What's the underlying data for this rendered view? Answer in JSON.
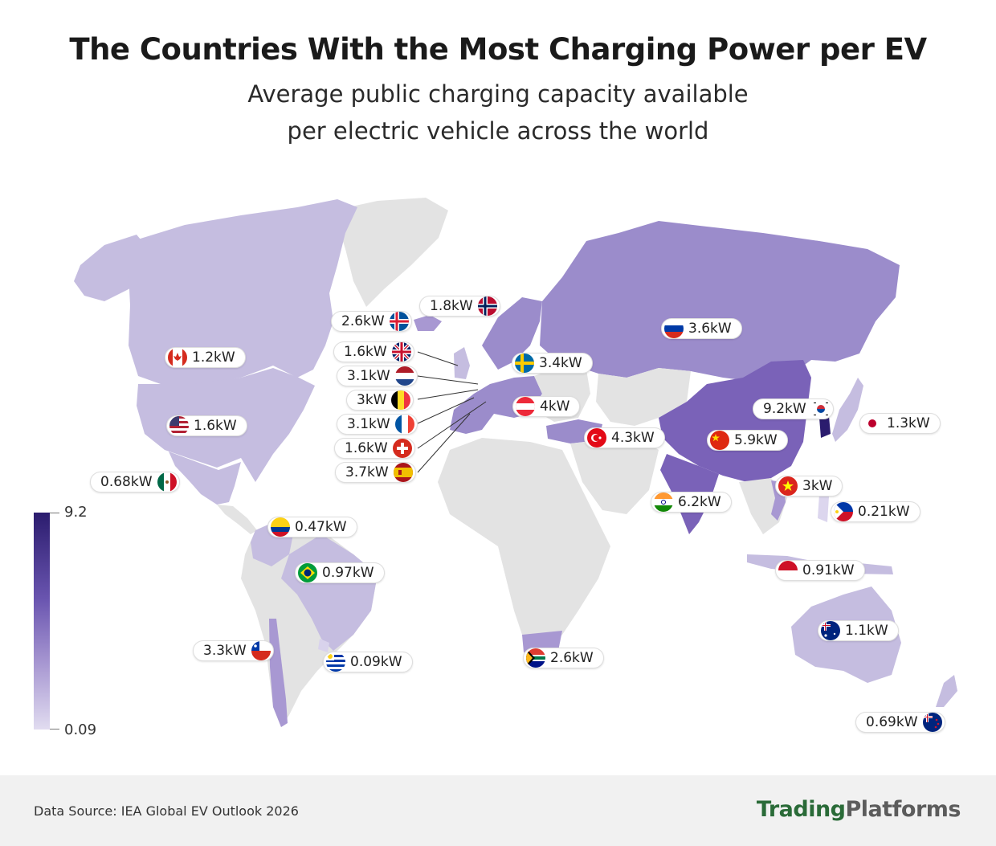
{
  "header": {
    "title": "The Countries With the Most Charging Power per EV",
    "subtitle_line1": "Average public charging capacity available",
    "subtitle_line2": "per electric vehicle across the world"
  },
  "legend": {
    "max": "9.2",
    "min": "0.09",
    "color_high": "#2b1c6e",
    "color_low": "#e1dcf0"
  },
  "colors": {
    "no_data": "#e3e3e3",
    "low": "#c5bde0",
    "mid": "#9b8ccb",
    "high": "#7a62b8",
    "top": "#4b3592"
  },
  "countries": [
    {
      "name": "Canada",
      "value": "1.2kW",
      "flag": "canada-flag"
    },
    {
      "name": "United States",
      "value": "1.6kW",
      "flag": "us-flag"
    },
    {
      "name": "Mexico",
      "value": "0.68kW",
      "flag": "mexico-flag"
    },
    {
      "name": "Colombia",
      "value": "0.47kW",
      "flag": "colombia-flag"
    },
    {
      "name": "Brazil",
      "value": "0.97kW",
      "flag": "brazil-flag"
    },
    {
      "name": "Chile",
      "value": "3.3kW",
      "flag": "chile-flag"
    },
    {
      "name": "Uruguay",
      "value": "0.09kW",
      "flag": "uruguay-flag"
    },
    {
      "name": "Iceland",
      "value": "2.6kW",
      "flag": "iceland-flag"
    },
    {
      "name": "Norway",
      "value": "1.8kW",
      "flag": "norway-flag"
    },
    {
      "name": "United Kingdom",
      "value": "1.6kW",
      "flag": "uk-flag"
    },
    {
      "name": "Netherlands",
      "value": "3.1kW",
      "flag": "netherlands-flag"
    },
    {
      "name": "Belgium",
      "value": "3kW",
      "flag": "belgium-flag"
    },
    {
      "name": "France",
      "value": "3.1kW",
      "flag": "france-flag"
    },
    {
      "name": "Switzerland",
      "value": "1.6kW",
      "flag": "switzerland-flag"
    },
    {
      "name": "Spain",
      "value": "3.7kW",
      "flag": "spain-flag"
    },
    {
      "name": "Sweden",
      "value": "3.4kW",
      "flag": "sweden-flag"
    },
    {
      "name": "Austria",
      "value": "4kW",
      "flag": "austria-flag"
    },
    {
      "name": "Russia",
      "value": "3.6kW",
      "flag": "russia-flag"
    },
    {
      "name": "Turkey",
      "value": "4.3kW",
      "flag": "turkey-flag"
    },
    {
      "name": "China",
      "value": "5.9kW",
      "flag": "china-flag"
    },
    {
      "name": "South Korea",
      "value": "9.2kW",
      "flag": "south-korea-flag"
    },
    {
      "name": "Japan",
      "value": "1.3kW",
      "flag": "japan-flag"
    },
    {
      "name": "India",
      "value": "6.2kW",
      "flag": "india-flag"
    },
    {
      "name": "Vietnam",
      "value": "3kW",
      "flag": "vietnam-flag"
    },
    {
      "name": "Philippines",
      "value": "0.21kW",
      "flag": "philippines-flag"
    },
    {
      "name": "Indonesia",
      "value": "0.91kW",
      "flag": "indonesia-flag"
    },
    {
      "name": "Australia",
      "value": "1.1kW",
      "flag": "australia-flag"
    },
    {
      "name": "New Zealand",
      "value": "0.69kW",
      "flag": "new-zealand-flag"
    },
    {
      "name": "South Africa",
      "value": "2.6kW",
      "flag": "south-africa-flag"
    }
  ],
  "footer": {
    "source": "Data Source: IEA Global EV Outlook 2026",
    "brand_part1": "Trading",
    "brand_part2": "Platforms"
  }
}
